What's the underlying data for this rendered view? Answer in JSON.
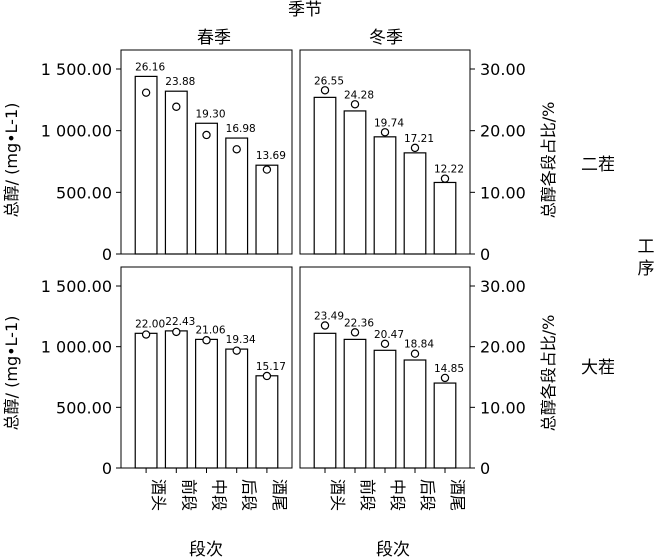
{
  "chart_data": {
    "type": "bar",
    "title": "季节",
    "xlabel": "段次",
    "ylabel_left": "总醇/ (mg•L-1)",
    "ylabel_right": "总醇各段占比/%",
    "facet_row_title": "工序",
    "columns": [
      "春季",
      "冬季"
    ],
    "rows": [
      "二茬",
      "大茬"
    ],
    "categories": [
      "酒头",
      "前段",
      "中段",
      "后段",
      "酒尾"
    ],
    "y_left_ticks": [
      "0",
      "500.00",
      "1 000.00",
      "1 500.00"
    ],
    "y_right_ticks": [
      "0",
      "10.00",
      "20.00",
      "30.00"
    ],
    "ylim_left": [
      0,
      1500
    ],
    "ylim_right": [
      0,
      30
    ],
    "panels": [
      {
        "row": "二茬",
        "column": "春季",
        "bar_values": [
          1440,
          1320,
          1060,
          940,
          720
        ],
        "pct_values": [
          26.16,
          23.88,
          19.3,
          16.98,
          13.69
        ],
        "labels": [
          "26.16",
          "23.88",
          "19.30",
          "16.98",
          "13.69"
        ]
      },
      {
        "row": "二茬",
        "column": "冬季",
        "bar_values": [
          1270,
          1160,
          950,
          820,
          580
        ],
        "pct_values": [
          26.55,
          24.28,
          19.74,
          17.21,
          12.22
        ],
        "labels": [
          "26.55",
          "24.28",
          "19.74",
          "17.21",
          "12.22"
        ]
      },
      {
        "row": "大茬",
        "column": "春季",
        "bar_values": [
          1110,
          1130,
          1060,
          980,
          760
        ],
        "pct_values": [
          22.0,
          22.43,
          21.06,
          19.34,
          15.17
        ],
        "labels": [
          "22.00",
          "22.43",
          "21.06",
          "19.34",
          "15.17"
        ]
      },
      {
        "row": "大茬",
        "column": "冬季",
        "bar_values": [
          1110,
          1060,
          970,
          890,
          700
        ],
        "pct_values": [
          23.49,
          22.36,
          20.47,
          18.84,
          14.85
        ],
        "labels": [
          "23.49",
          "22.36",
          "20.47",
          "18.84",
          "14.85"
        ]
      }
    ]
  }
}
